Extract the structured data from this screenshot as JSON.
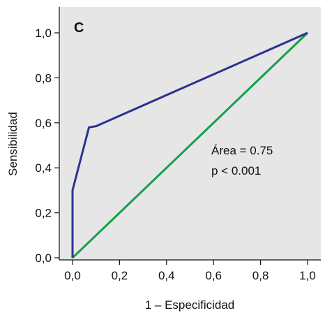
{
  "chart_data": {
    "type": "line",
    "panel_label": "C",
    "xlabel": "1 – Especificidad",
    "ylabel": "Sensibilidad",
    "xlim": [
      0,
      1.0
    ],
    "ylim": [
      0,
      1.0
    ],
    "x_ticks": [
      "0,0",
      "0,2",
      "0,4",
      "0,6",
      "0,8",
      "1,0"
    ],
    "y_ticks": [
      "0,0",
      "0,2",
      "0,4",
      "0,6",
      "0,8",
      "1,0"
    ],
    "grid": false,
    "colors": {
      "background": "#e6e6e6",
      "roc": "#2e3192",
      "reference": "#13a04a"
    },
    "series": [
      {
        "color_key": "roc",
        "x": [
          0,
          0,
          0.07,
          0.1,
          1.0
        ],
        "y": [
          0,
          0.3,
          0.58,
          0.585,
          1.0
        ]
      },
      {
        "color_key": "reference",
        "x": [
          0,
          1.0
        ],
        "y": [
          0,
          1.0
        ]
      }
    ],
    "annotations": [
      "Área = 0.75",
      "p < 0.001"
    ]
  }
}
